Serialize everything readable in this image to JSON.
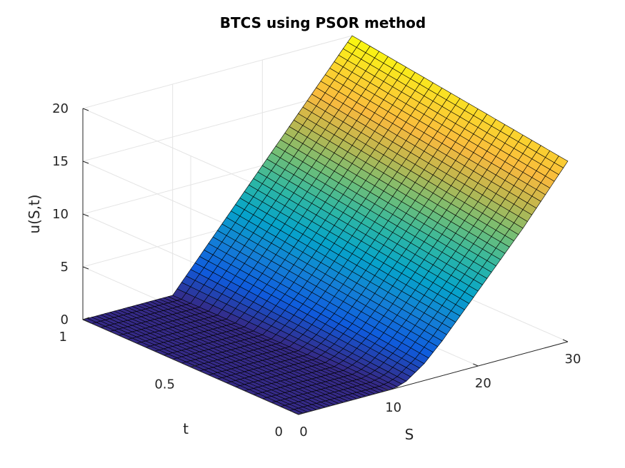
{
  "chart_data": {
    "type": "surface",
    "title": "BTCS using PSOR method",
    "xlabel": "S",
    "ylabel": "t",
    "zlabel": "u(S,t)",
    "xlim": [
      0,
      30
    ],
    "ylim": [
      0,
      1
    ],
    "zlim": [
      0,
      20
    ],
    "x_ticks": [
      0,
      10,
      20,
      30
    ],
    "y_ticks": [
      0,
      0.5,
      1
    ],
    "z_ticks": [
      0,
      5,
      10,
      15,
      20
    ],
    "x_tick_labels": [
      "0",
      "10",
      "20",
      "30"
    ],
    "y_tick_labels": [
      "0",
      "0.5",
      "1"
    ],
    "z_tick_labels": [
      "0",
      "5",
      "10",
      "15",
      "20"
    ],
    "strike": 10,
    "surface_samples": {
      "S": [
        0,
        5,
        10,
        11,
        12,
        14,
        16,
        20,
        25,
        30
      ],
      "u_at_t0": [
        0,
        0,
        0,
        0.1,
        0.4,
        1.6,
        3.3,
        7.1,
        11.9,
        17.1
      ],
      "u_at_t1": [
        0,
        0,
        0,
        1.0,
        2.0,
        4.0,
        6.0,
        10.0,
        15.0,
        20.0
      ]
    },
    "colormap": "parula",
    "grid": true,
    "view": "3d"
  }
}
